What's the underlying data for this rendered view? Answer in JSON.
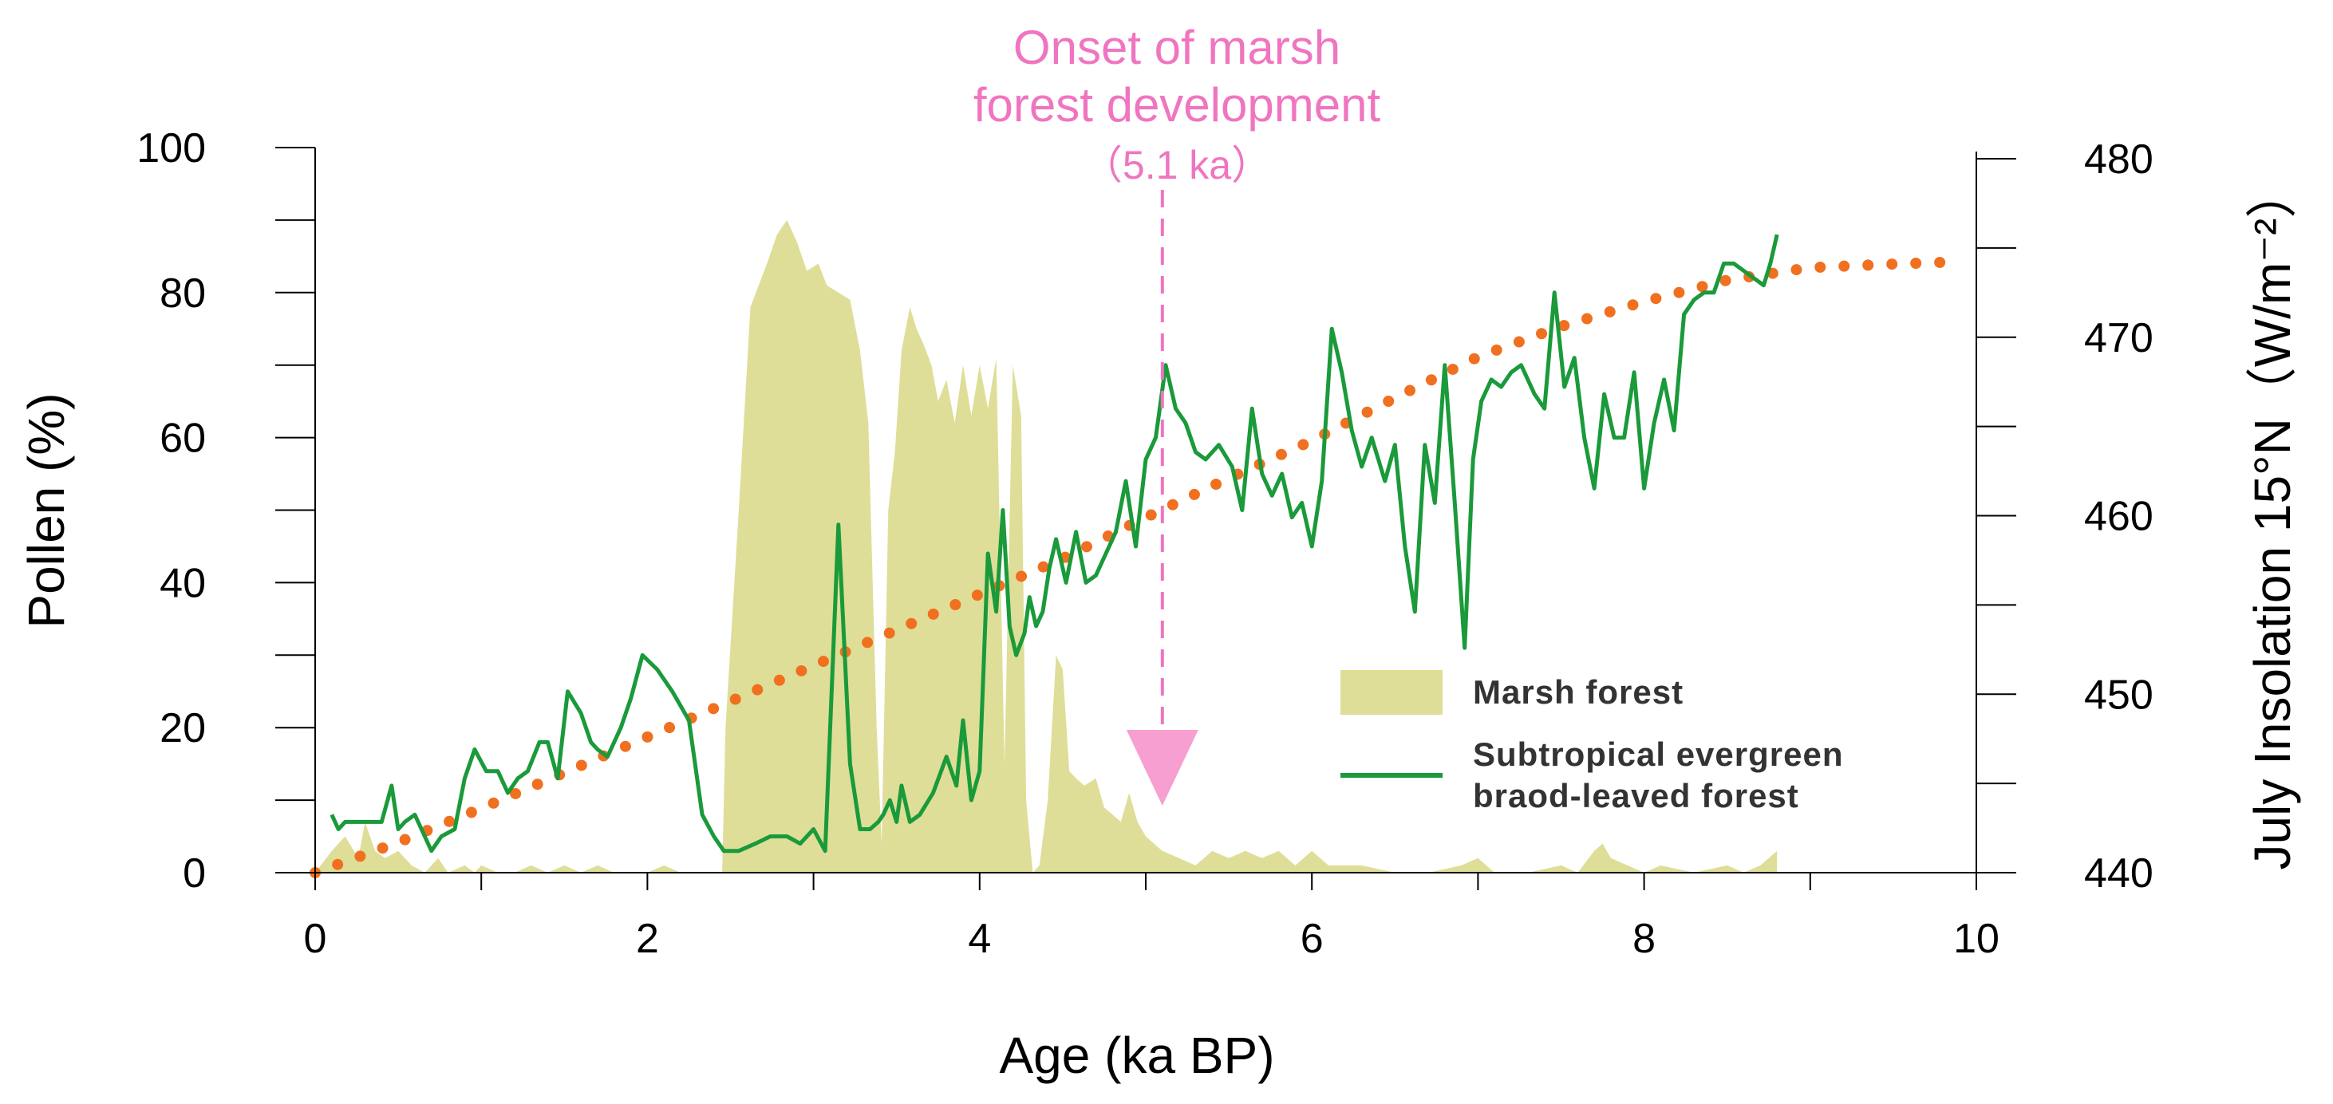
{
  "chart_data": {
    "type": "area+line",
    "xlabel": "Age (ka BP)",
    "ylabel": "Pollen (%)",
    "y2label": "July Insolation 15°N（W/m⁻²）",
    "xlim": [
      0,
      10
    ],
    "ylim": [
      0,
      100
    ],
    "y2lim": [
      440,
      480
    ],
    "x_ticks": [
      "0",
      "2",
      "4",
      "6",
      "8",
      "10"
    ],
    "y_ticks": [
      "0",
      "20",
      "40",
      "60",
      "80",
      "100"
    ],
    "y2_ticks": [
      "440",
      "450",
      "460",
      "470",
      "480"
    ],
    "annotation": {
      "lines": [
        "Onset of marsh",
        "forest development",
        "（5.1 ka）"
      ],
      "x": 5.1,
      "color": "#f075c0"
    },
    "legend": {
      "position": "bottom-right",
      "items": [
        {
          "label": "Marsh forest",
          "type": "area",
          "color": "#dede98"
        },
        {
          "label_lines": [
            "Subtropical evergreen",
            "braod-leaved forest"
          ],
          "type": "line",
          "color": "#1a9a3a"
        }
      ]
    },
    "series": [
      {
        "name": "Marsh forest",
        "type": "area",
        "color": "#dede98",
        "x": [
          0,
          0.1,
          0.18,
          0.26,
          0.3,
          0.36,
          0.42,
          0.5,
          0.58,
          0.66,
          0.74,
          0.8,
          0.9,
          0.96,
          1.0,
          1.1,
          1.2,
          1.3,
          1.4,
          1.5,
          1.6,
          1.7,
          1.8,
          1.9,
          2.0,
          2.1,
          2.2,
          2.3,
          2.4,
          2.45,
          2.47,
          2.55,
          2.62,
          2.72,
          2.78,
          2.84,
          2.9,
          2.96,
          3.03,
          3.08,
          3.15,
          3.22,
          3.28,
          3.33,
          3.38,
          3.41,
          3.45,
          3.49,
          3.53,
          3.58,
          3.62,
          3.66,
          3.71,
          3.75,
          3.8,
          3.85,
          3.9,
          3.95,
          4.0,
          4.05,
          4.1,
          4.15,
          4.2,
          4.25,
          4.28,
          4.32,
          4.36,
          4.41,
          4.46,
          4.5,
          4.54,
          4.58,
          4.63,
          4.7,
          4.75,
          4.8,
          4.85,
          4.9,
          4.95,
          5.0,
          5.05,
          5.1,
          5.2,
          5.3,
          5.4,
          5.5,
          5.6,
          5.7,
          5.8,
          5.9,
          6.0,
          6.05,
          6.1,
          6.3,
          6.5,
          6.7,
          6.9,
          7.0,
          7.1,
          7.3,
          7.5,
          7.6,
          7.7,
          7.75,
          7.8,
          7.9,
          8.0,
          8.1,
          8.3,
          8.5,
          8.6,
          8.7,
          8.75,
          8.8
        ],
        "values": [
          0,
          3,
          5,
          2,
          7,
          3,
          2,
          3,
          1,
          0,
          2,
          0,
          1,
          0,
          1,
          0,
          0,
          1,
          0,
          1,
          0,
          1,
          0,
          0,
          0,
          1,
          0,
          0,
          0,
          0,
          20,
          50,
          78,
          84,
          88,
          90,
          87,
          83,
          84,
          81,
          80,
          79,
          72,
          62,
          20,
          4,
          50,
          58,
          72,
          78,
          75,
          73,
          70,
          65,
          68,
          62,
          70,
          63,
          70,
          64,
          71,
          15,
          70,
          63,
          10,
          0,
          1,
          10,
          30,
          28,
          14,
          13,
          12,
          13,
          9,
          8,
          7,
          11,
          7,
          5,
          4,
          3,
          2,
          1,
          3,
          2,
          3,
          2,
          3,
          1,
          3,
          2,
          1,
          1,
          0,
          0,
          1,
          2,
          0,
          0,
          1,
          0,
          3,
          4,
          2,
          1,
          0,
          1,
          0,
          1,
          0,
          1,
          2,
          3
        ]
      },
      {
        "name": "Subtropical evergreen braod-leaved forest",
        "type": "line",
        "color": "#1a9a3a",
        "x": [
          0.1,
          0.14,
          0.18,
          0.3,
          0.4,
          0.46,
          0.5,
          0.54,
          0.6,
          0.66,
          0.7,
          0.76,
          0.84,
          0.9,
          0.96,
          1.03,
          1.1,
          1.16,
          1.22,
          1.28,
          1.35,
          1.4,
          1.46,
          1.52,
          1.6,
          1.66,
          1.7,
          1.76,
          1.84,
          1.9,
          1.97,
          2.06,
          2.15,
          2.25,
          2.33,
          2.4,
          2.46,
          2.55,
          2.65,
          2.74,
          2.84,
          2.92,
          3.0,
          3.07,
          3.15,
          3.22,
          3.28,
          3.34,
          3.39,
          3.42,
          3.46,
          3.5,
          3.53,
          3.58,
          3.64,
          3.72,
          3.8,
          3.86,
          3.9,
          3.95,
          4.0,
          4.05,
          4.1,
          4.14,
          4.18,
          4.22,
          4.27,
          4.3,
          4.34,
          4.38,
          4.42,
          4.46,
          4.52,
          4.58,
          4.64,
          4.7,
          4.76,
          4.82,
          4.88,
          4.94,
          5.0,
          5.06,
          5.12,
          5.18,
          5.24,
          5.3,
          5.36,
          5.44,
          5.52,
          5.58,
          5.64,
          5.7,
          5.76,
          5.82,
          5.88,
          5.94,
          6.0,
          6.06,
          6.12,
          6.18,
          6.24,
          6.3,
          6.36,
          6.44,
          6.5,
          6.56,
          6.62,
          6.68,
          6.74,
          6.8,
          6.86,
          6.92,
          6.97,
          7.02,
          7.08,
          7.14,
          7.2,
          7.26,
          7.34,
          7.4,
          7.46,
          7.52,
          7.58,
          7.64,
          7.7,
          7.76,
          7.82,
          7.88,
          7.94,
          8.0,
          8.06,
          8.12,
          8.18,
          8.24,
          8.3,
          8.36,
          8.42,
          8.48,
          8.54,
          8.6,
          8.66,
          8.72,
          8.76,
          8.8
        ],
        "values": [
          8,
          6,
          7,
          7,
          7,
          12,
          6,
          7,
          8,
          5,
          3,
          5,
          6,
          13,
          17,
          14,
          14,
          11,
          13,
          14,
          18,
          18,
          13,
          25,
          22,
          18,
          17,
          16,
          20,
          24,
          30,
          28,
          25,
          21,
          8,
          5,
          3,
          3,
          4,
          5,
          5,
          4,
          6,
          3,
          48,
          15,
          6,
          6,
          7,
          8,
          10,
          7,
          12,
          7,
          8,
          11,
          16,
          12,
          21,
          10,
          14,
          44,
          36,
          50,
          34,
          30,
          33,
          38,
          34,
          36,
          42,
          46,
          40,
          47,
          40,
          41,
          44,
          47,
          54,
          45,
          57,
          60,
          70,
          64,
          62,
          58,
          57,
          59,
          56,
          50,
          64,
          55,
          52,
          55,
          49,
          51,
          45,
          54,
          75,
          69,
          61,
          56,
          60,
          54,
          59,
          45,
          36,
          59,
          51,
          70,
          51,
          31,
          57,
          65,
          68,
          67,
          69,
          70,
          66,
          64,
          80,
          67,
          71,
          60,
          53,
          66,
          60,
          60,
          69,
          53,
          62,
          68,
          61,
          77,
          79,
          80,
          80,
          84,
          84,
          83,
          82,
          81,
          84,
          88
        ],
        "stroke_width": 4
      },
      {
        "name": "July Insolation 15°N",
        "type": "line",
        "style": "dotted",
        "color": "#f07020",
        "axis": "y2",
        "x": [
          0,
          0.5,
          1.0,
          1.5,
          2.0,
          2.5,
          3.0,
          3.5,
          4.0,
          4.5,
          5.0,
          5.5,
          6.0,
          6.5,
          7.0,
          7.5,
          8.0,
          8.5,
          9.0,
          9.5,
          9.8
        ],
        "values": [
          440.0,
          441.7,
          443.6,
          445.6,
          447.6,
          449.6,
          451.6,
          453.6,
          455.6,
          457.6,
          459.9,
          462.1,
          464.2,
          466.6,
          468.9,
          470.6,
          472.0,
          473.2,
          473.9,
          474.1,
          474.2
        ]
      }
    ]
  }
}
